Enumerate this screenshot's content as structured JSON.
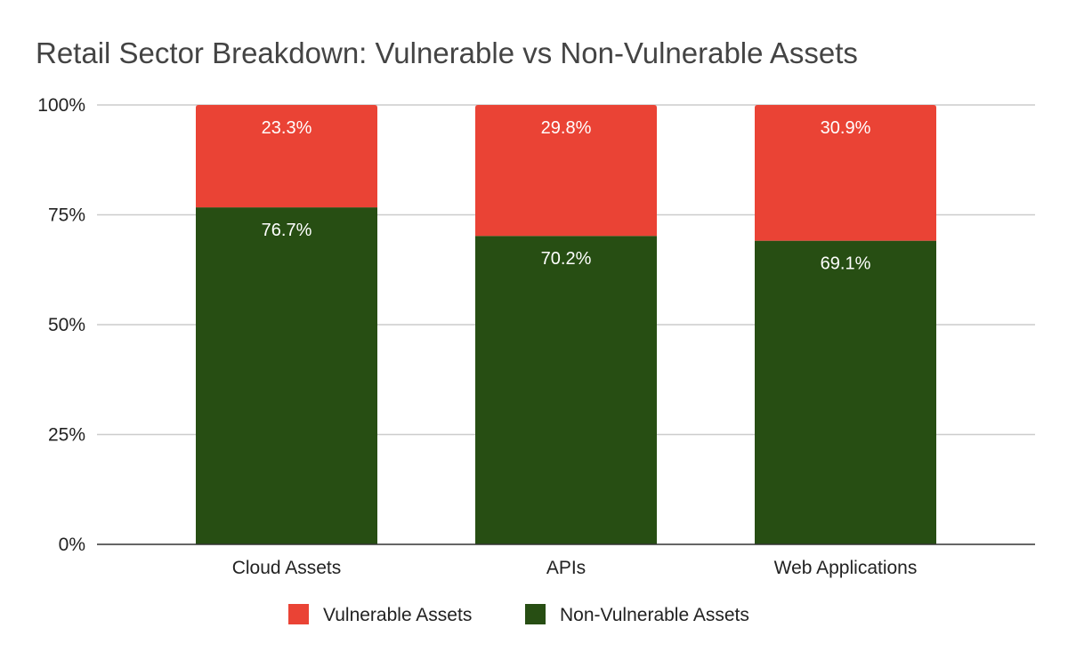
{
  "chart_data": {
    "type": "bar",
    "stacked": true,
    "title": "Retail Sector Breakdown: Vulnerable vs Non-Vulnerable Assets",
    "categories": [
      "Cloud Assets",
      "APIs",
      "Web Applications"
    ],
    "series": [
      {
        "name": "Vulnerable Assets",
        "values": [
          23.3,
          29.8,
          30.9
        ],
        "color": "#ea4335"
      },
      {
        "name": "Non-Vulnerable Assets",
        "values": [
          76.7,
          70.2,
          69.1
        ],
        "color": "#274e13"
      }
    ],
    "data_labels": {
      "Vulnerable Assets": [
        "23.3%",
        "29.8%",
        "30.9%"
      ],
      "Non-Vulnerable Assets": [
        "76.7%",
        "70.2%",
        "69.1%"
      ]
    },
    "y_ticks": [
      {
        "value": 0,
        "label": "0%"
      },
      {
        "value": 25,
        "label": "25%"
      },
      {
        "value": 50,
        "label": "50%"
      },
      {
        "value": 75,
        "label": "75%"
      },
      {
        "value": 100,
        "label": "100%"
      }
    ],
    "xlabel": "",
    "ylabel": "",
    "ylim": [
      0,
      100
    ],
    "grid": true,
    "legend_position": "bottom"
  }
}
